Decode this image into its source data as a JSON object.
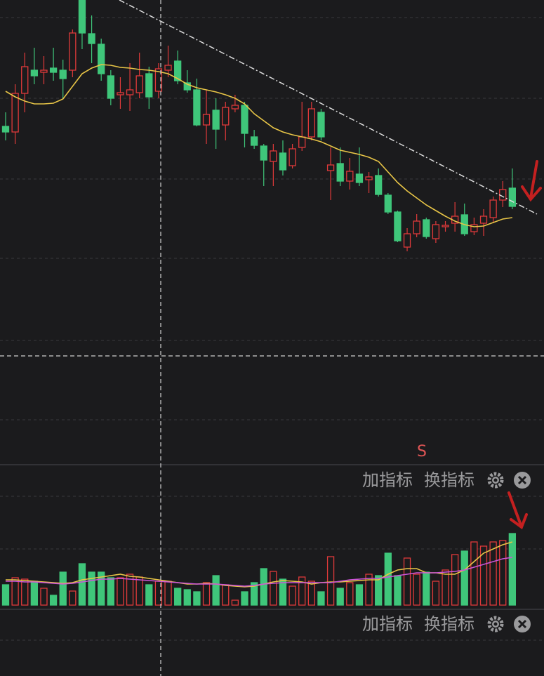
{
  "chart_data": [
    {
      "type": "candlestick",
      "up_color": "#e03a3a",
      "down_color": "#3fc67a",
      "ylim": [
        0,
        660
      ],
      "annotation": "S",
      "open": [
        480,
        472,
        527,
        560,
        557,
        563,
        560,
        560,
        660,
        612,
        597,
        552,
        525,
        525,
        528,
        555,
        530,
        560,
        573,
        542,
        532,
        482,
        503,
        482,
        505,
        510,
        465,
        452,
        430,
        442,
        424,
        450,
        465,
        500,
        417,
        427,
        402,
        412,
        404,
        410,
        382,
        358,
        308,
        327,
        347,
        320,
        337,
        342,
        354,
        330,
        342,
        350,
        375,
        392
      ],
      "high": [
        500,
        540,
        585,
        592,
        580,
        592,
        575,
        618,
        660,
        638,
        605,
        560,
        550,
        570,
        585,
        565,
        570,
        595,
        588,
        560,
        548,
        532,
        520,
        515,
        525,
        515,
        475,
        455,
        455,
        460,
        455,
        515,
        515,
        505,
        450,
        450,
        435,
        450,
        415,
        420,
        385,
        360,
        335,
        355,
        350,
        345,
        345,
        372,
        370,
        350,
        362,
        380,
        402,
        420
      ],
      "low": [
        460,
        455,
        500,
        540,
        540,
        545,
        520,
        550,
        590,
        570,
        545,
        510,
        505,
        502,
        520,
        505,
        520,
        550,
        540,
        528,
        480,
        455,
        448,
        460,
        500,
        450,
        448,
        395,
        395,
        410,
        420,
        445,
        460,
        460,
        375,
        395,
        390,
        395,
        385,
        380,
        355,
        315,
        302,
        322,
        320,
        314,
        330,
        330,
        324,
        325,
        324,
        342,
        365,
        362
      ],
      "close": [
        472,
        527,
        565,
        552,
        560,
        557,
        548,
        613,
        613,
        598,
        555,
        520,
        528,
        532,
        552,
        522,
        562,
        567,
        545,
        532,
        482,
        497,
        476,
        507,
        510,
        470,
        453,
        432,
        445,
        418,
        448,
        465,
        505,
        465,
        425,
        402,
        416,
        400,
        408,
        383,
        358,
        317,
        327,
        345,
        323,
        340,
        339,
        352,
        327,
        340,
        352,
        375,
        390,
        366
      ],
      "ma": {
        "color": "#e8c547",
        "values": [
          530,
          522,
          516,
          512,
          512,
          513,
          519,
          537,
          555,
          563,
          568,
          567,
          564,
          563,
          561,
          560,
          558,
          555,
          548,
          540,
          535,
          532,
          529,
          525,
          520,
          512,
          498,
          488,
          478,
          472,
          468,
          465,
          462,
          458,
          452,
          446,
          443,
          440,
          436,
          430,
          415,
          400,
          388,
          378,
          368,
          360,
          352,
          345,
          340,
          337,
          338,
          343,
          348,
          350
        ]
      }
    },
    {
      "type": "bar",
      "ylim": [
        0,
        200
      ],
      "values": [
        29,
        39,
        37,
        34,
        24,
        14,
        47,
        20,
        59,
        47,
        47,
        39,
        39,
        44,
        40,
        29,
        34,
        34,
        24,
        22,
        19,
        32,
        42,
        29,
        7,
        19,
        32,
        52,
        48,
        37,
        27,
        40,
        34,
        19,
        69,
        24,
        32,
        29,
        44,
        42,
        74,
        42,
        67,
        44,
        47,
        34,
        50,
        72,
        77,
        90,
        84,
        90,
        92,
        102
      ],
      "lines": [
        {
          "color": "#e8c547",
          "values": [
            36,
            36,
            35,
            34,
            33,
            32,
            31,
            32,
            36,
            38,
            40,
            42,
            44,
            41,
            40,
            38,
            36,
            34,
            32,
            30,
            30,
            31,
            30,
            28,
            27,
            26,
            27,
            30,
            33,
            35,
            34,
            33,
            30,
            32,
            33,
            33,
            34,
            35,
            36,
            36,
            44,
            50,
            52,
            52,
            46,
            46,
            44,
            44,
            50,
            62,
            74,
            80,
            86,
            90
          ]
        },
        {
          "color": "#cc55d8",
          "values": [
            34,
            34,
            33,
            33,
            32,
            31,
            30,
            31,
            33,
            35,
            37,
            37,
            38,
            37,
            36,
            35,
            34,
            33,
            32,
            31,
            30,
            30,
            30,
            29,
            28,
            27,
            28,
            30,
            31,
            32,
            32,
            32,
            32,
            32,
            32,
            34,
            36,
            37,
            38,
            38,
            40,
            42,
            44,
            46,
            46,
            46,
            47,
            48,
            50,
            54,
            58,
            62,
            66,
            68
          ]
        }
      ]
    }
  ],
  "panels": [
    {
      "add": "加指标",
      "switch": "换指标"
    },
    {
      "add": "加指标",
      "switch": "换指标"
    }
  ]
}
